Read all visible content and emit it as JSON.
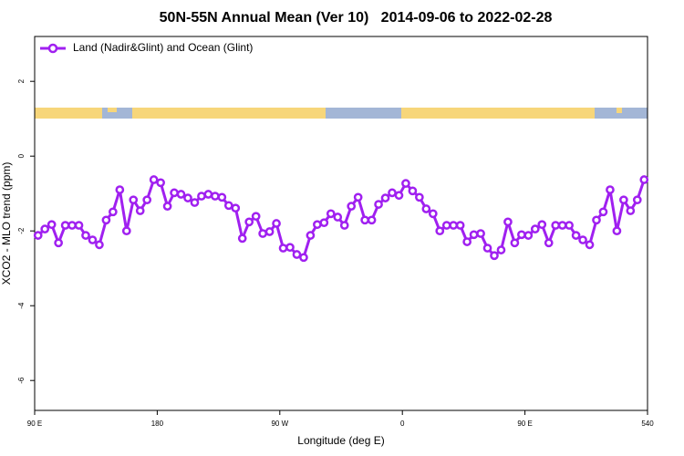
{
  "chart_data": {
    "type": "line",
    "title": "50N-55N Annual Mean (Ver 10)   2014-09-06 to 2022-02-28",
    "x_label": "Longitude (deg E)",
    "y_label": "XCO2 - MLO trend (ppm)",
    "x": [
      92.5,
      97.5,
      102.5,
      107.5,
      112.5,
      117.5,
      122.5,
      127.5,
      132.5,
      137.5,
      142.5,
      147.5,
      152.5,
      157.5,
      162.5,
      167.5,
      172.5,
      177.5,
      182.5,
      187.5,
      192.5,
      197.5,
      202.5,
      207.5,
      212.5,
      217.5,
      222.5,
      227.5,
      232.5,
      237.5,
      242.5,
      247.5,
      252.5,
      257.5,
      262.5,
      267.5,
      272.5,
      277.5,
      282.5,
      287.5,
      292.5,
      297.5,
      302.5,
      307.5,
      312.5,
      317.5,
      322.5,
      327.5,
      332.5,
      337.5,
      342.5,
      347.5,
      352.5,
      357.5,
      362.5,
      367.5,
      372.5,
      377.5,
      382.5,
      387.5,
      392.5,
      397.5,
      402.5,
      407.5,
      412.5,
      417.5,
      422.5,
      427.5,
      432.5,
      437.5,
      442.5,
      447.5,
      452.5,
      457.5,
      462.5,
      467.5,
      472.5,
      477.5,
      482.5,
      487.5,
      492.5,
      497.5,
      502.5,
      507.5,
      512.5,
      517.5,
      522.5,
      527.5,
      532.5,
      537.5
    ],
    "series": [
      {
        "name": "Land (Nadir&Glint) and Ocean (Glint)",
        "color": "#a020f0",
        "values": [
          -2.12,
          -1.95,
          -1.83,
          -2.32,
          -1.85,
          -1.85,
          -1.85,
          -2.12,
          -2.24,
          -2.37,
          -1.71,
          -1.49,
          -0.9,
          -2.0,
          -1.17,
          -1.46,
          -1.17,
          -0.63,
          -0.71,
          -1.34,
          -0.98,
          -1.02,
          -1.12,
          -1.24,
          -1.07,
          -1.02,
          -1.07,
          -1.1,
          -1.32,
          -1.39,
          -2.2,
          -1.76,
          -1.61,
          -2.07,
          -2.02,
          -1.8,
          -2.46,
          -2.44,
          -2.63,
          -2.71,
          -2.12,
          -1.83,
          -1.78,
          -1.54,
          -1.63,
          -1.85,
          -1.34,
          -1.1,
          -1.71,
          -1.71,
          -1.29,
          -1.12,
          -0.98,
          -1.05,
          -0.73,
          -0.93,
          -1.1,
          -1.41,
          -1.54,
          -2.0,
          -1.85,
          -1.85,
          -1.85,
          -2.29,
          -2.1,
          -2.07,
          -2.46,
          -2.66,
          -2.51,
          -1.76,
          -2.32,
          -2.1,
          -2.12,
          -1.95,
          -1.83,
          -2.32,
          -1.85,
          -1.85,
          -1.85,
          -2.12,
          -2.24,
          -2.37,
          -1.71,
          -1.49,
          -0.9,
          -2.0,
          -1.17,
          -1.46,
          -1.17,
          -0.63
        ]
      }
    ],
    "xlim": [
      90,
      540
    ],
    "xticks": [
      {
        "value": 90,
        "label": "90 E"
      },
      180,
      {
        "value": 270,
        "label": "90 W"
      },
      {
        "value": 360,
        "label": "0"
      },
      {
        "value": 450,
        "label": "90 E"
      },
      540
    ],
    "ylim": [
      -6.8,
      3.2
    ],
    "yticks": [
      -6,
      -4,
      -2,
      0,
      2
    ],
    "legend": "upper left"
  }
}
